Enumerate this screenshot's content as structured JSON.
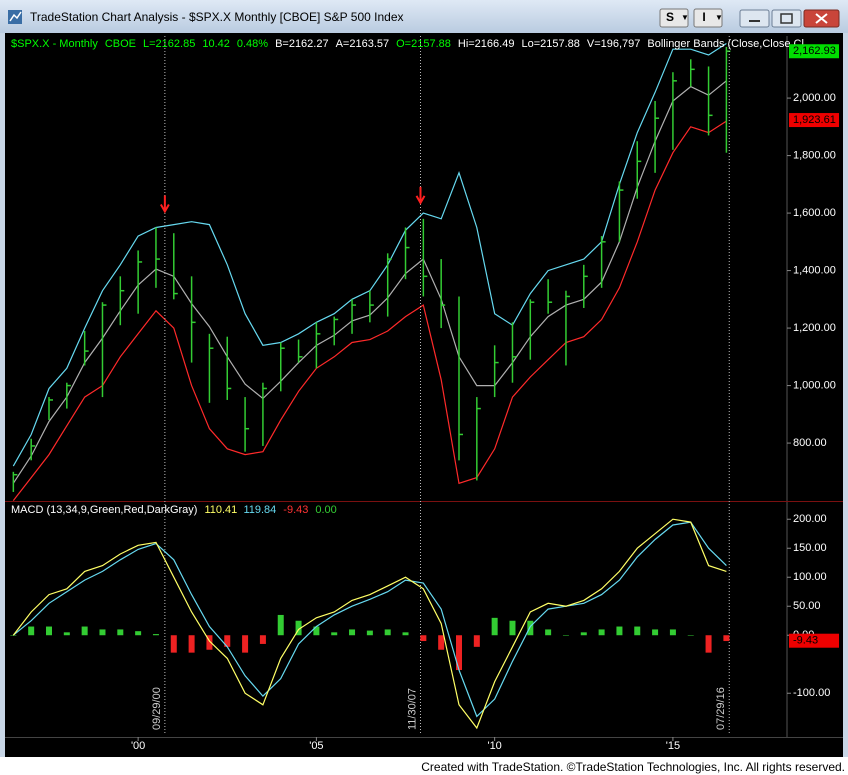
{
  "window_title": "TradeStation Chart Analysis - $SPX.X Monthly [CBOE] S&P 500 Index",
  "toolbar_buttons": [
    "S",
    "I"
  ],
  "footer": "Created with TradeStation. ©TradeStation Technologies, Inc. All rights reserved.",
  "chart_data": [
    {
      "type": "ohlc",
      "header": [
        {
          "text": "$SPX.X - Monthly",
          "color": "#00ff00"
        },
        {
          "text": "CBOE",
          "color": "#00ff00"
        },
        {
          "text": "L=2162.85",
          "color": "#00ff00"
        },
        {
          "text": "10.42",
          "color": "#00ff00"
        },
        {
          "text": "0.48%",
          "color": "#00ff00"
        },
        {
          "text": "B=2162.27",
          "color": "#ffffff"
        },
        {
          "text": "A=2163.57",
          "color": "#ffffff"
        },
        {
          "text": "O=2157.88",
          "color": "#00ff00"
        },
        {
          "text": "Hi=2166.49",
          "color": "#ffffff"
        },
        {
          "text": "Lo=2157.88",
          "color": "#ffffff"
        },
        {
          "text": "V=196,797",
          "color": "#ffffff"
        },
        {
          "text": "Bollinger Bands (Close,Close,Cl...",
          "color": "#ffffff"
        }
      ],
      "x": [
        1996.5,
        1997.0,
        1997.5,
        1998.0,
        1998.5,
        1999.0,
        1999.5,
        2000.0,
        2000.5,
        2001.0,
        2001.5,
        2002.0,
        2002.5,
        2003.0,
        2003.5,
        2004.0,
        2004.5,
        2005.0,
        2005.5,
        2006.0,
        2006.5,
        2007.0,
        2007.5,
        2008.0,
        2008.5,
        2009.0,
        2009.5,
        2010.0,
        2010.5,
        2011.0,
        2011.5,
        2012.0,
        2012.5,
        2013.0,
        2013.5,
        2014.0,
        2014.5,
        2015.0,
        2015.5,
        2016.0,
        2016.5
      ],
      "high": [
        700,
        815,
        960,
        1010,
        1190,
        1290,
        1380,
        1470,
        1550,
        1530,
        1380,
        1180,
        1170,
        960,
        1010,
        1150,
        1160,
        1220,
        1240,
        1300,
        1330,
        1460,
        1550,
        1580,
        1440,
        1310,
        960,
        1140,
        1220,
        1300,
        1370,
        1330,
        1420,
        1520,
        1710,
        1850,
        1990,
        2090,
        2135,
        2110,
        2178
      ],
      "low": [
        630,
        740,
        880,
        920,
        1070,
        960,
        1210,
        1250,
        1340,
        1300,
        1080,
        940,
        950,
        770,
        790,
        980,
        1080,
        1060,
        1140,
        1180,
        1220,
        1240,
        1370,
        1310,
        1200,
        740,
        670,
        960,
        1010,
        1090,
        1250,
        1070,
        1270,
        1340,
        1500,
        1650,
        1740,
        1820,
        2040,
        1870,
        1810
      ],
      "close": [
        690,
        790,
        950,
        1000,
        1120,
        1280,
        1330,
        1430,
        1440,
        1320,
        1220,
        1130,
        990,
        850,
        990,
        1130,
        1100,
        1180,
        1230,
        1280,
        1280,
        1440,
        1480,
        1380,
        1280,
        830,
        920,
        1080,
        1100,
        1290,
        1290,
        1310,
        1380,
        1500,
        1680,
        1780,
        1930,
        2060,
        2100,
        1940,
        2163
      ],
      "bar_color": "#33cc33",
      "upper": [
        720,
        830,
        990,
        1060,
        1200,
        1330,
        1420,
        1520,
        1550,
        1560,
        1570,
        1560,
        1420,
        1250,
        1140,
        1150,
        1180,
        1220,
        1250,
        1300,
        1330,
        1420,
        1540,
        1600,
        1580,
        1740,
        1550,
        1250,
        1210,
        1320,
        1400,
        1420,
        1440,
        1500,
        1700,
        1880,
        2020,
        2170,
        2170,
        2150,
        2190
      ],
      "mid": [
        660,
        755,
        875,
        960,
        1080,
        1165,
        1260,
        1350,
        1405,
        1380,
        1285,
        1205,
        1100,
        1005,
        955,
        1015,
        1080,
        1140,
        1175,
        1225,
        1245,
        1305,
        1390,
        1440,
        1300,
        1100,
        1000,
        1000,
        1080,
        1170,
        1240,
        1280,
        1300,
        1360,
        1500,
        1690,
        1850,
        1990,
        2040,
        2010,
        2060
      ],
      "lower": [
        600,
        680,
        760,
        860,
        960,
        1000,
        1100,
        1180,
        1260,
        1200,
        1000,
        850,
        780,
        760,
        770,
        880,
        980,
        1060,
        1100,
        1150,
        1160,
        1190,
        1240,
        1280,
        1020,
        660,
        680,
        780,
        960,
        1030,
        1090,
        1150,
        1170,
        1230,
        1340,
        1500,
        1680,
        1810,
        1900,
        1880,
        1920
      ],
      "upper_color": "#66d9f0",
      "mid_color": "#b0b0b0",
      "lower_color": "#ff2a2a",
      "xlim": [
        1996.35,
        2018.2
      ],
      "ylim": [
        602,
        2209
      ],
      "yticks": [
        {
          "value": 800,
          "label": "800.00"
        },
        {
          "value": 1000,
          "label": "1,000.00"
        },
        {
          "value": 1200,
          "label": "1,200.00"
        },
        {
          "value": 1400,
          "label": "1,400.00"
        },
        {
          "value": 1600,
          "label": "1,600.00"
        },
        {
          "value": 1800,
          "label": "1,800.00"
        },
        {
          "value": 2000,
          "label": "2,000.00"
        }
      ],
      "last_labels": [
        {
          "value": 2162.93,
          "label": "2,162.93",
          "color": "#00dd00"
        },
        {
          "value": 1923.61,
          "label": "1,923.61",
          "color": "#ee0000"
        }
      ],
      "markers": [
        {
          "x": 2000.75,
          "label": "09/29/00",
          "arrow": true
        },
        {
          "x": 2007.92,
          "label": "11/30/07",
          "arrow": true
        },
        {
          "x": 2016.58,
          "label": "07/29/16",
          "arrow": false
        }
      ],
      "arrow_color": "#ff2020"
    },
    {
      "type": "macd",
      "header": [
        {
          "text": "MACD (13,34,9,Green,Red,DarkGray)",
          "color": "#ffffff"
        },
        {
          "text": "110.41",
          "color": "#ffff66"
        },
        {
          "text": "119.84",
          "color": "#66d9f0"
        },
        {
          "text": "-9.43",
          "color": "#ff3333"
        },
        {
          "text": "0.00",
          "color": "#33cc33"
        }
      ],
      "x": [
        1996.5,
        1997.0,
        1997.5,
        1998.0,
        1998.5,
        1999.0,
        1999.5,
        2000.0,
        2000.5,
        2001.0,
        2001.5,
        2002.0,
        2002.5,
        2003.0,
        2003.5,
        2004.0,
        2004.5,
        2005.0,
        2005.5,
        2006.0,
        2006.5,
        2007.0,
        2007.5,
        2008.0,
        2008.5,
        2009.0,
        2009.5,
        2010.0,
        2010.5,
        2011.0,
        2011.5,
        2012.0,
        2012.5,
        2013.0,
        2013.5,
        2014.0,
        2014.5,
        2015.0,
        2015.5,
        2016.0,
        2016.5
      ],
      "macd": [
        0,
        40,
        70,
        80,
        110,
        120,
        140,
        155,
        160,
        100,
        40,
        -10,
        -40,
        -100,
        -120,
        -40,
        10,
        30,
        40,
        60,
        70,
        85,
        100,
        80,
        20,
        -120,
        -160,
        -80,
        -20,
        40,
        55,
        50,
        60,
        80,
        110,
        150,
        175,
        200,
        195,
        120,
        110
      ],
      "signal": [
        0,
        25,
        55,
        75,
        95,
        110,
        130,
        148,
        158,
        130,
        70,
        15,
        -20,
        -70,
        -105,
        -75,
        -15,
        15,
        35,
        50,
        62,
        75,
        95,
        90,
        45,
        -60,
        -140,
        -110,
        -45,
        15,
        45,
        50,
        55,
        70,
        95,
        135,
        165,
        190,
        195,
        150,
        120
      ],
      "hist": [
        0,
        15,
        15,
        5,
        15,
        10,
        10,
        7,
        2,
        -30,
        -30,
        -25,
        -20,
        -30,
        -15,
        35,
        25,
        15,
        5,
        10,
        8,
        10,
        5,
        -10,
        -25,
        -60,
        -20,
        30,
        25,
        25,
        10,
        0,
        5,
        10,
        15,
        15,
        10,
        10,
        0,
        -30,
        -10
      ],
      "macd_color": "#ffff66",
      "signal_color": "#66d9f0",
      "pos_color": "#33cc33",
      "neg_color": "#ee2222",
      "xlim": [
        1996.35,
        2018.2
      ],
      "ylim": [
        -172,
        228
      ],
      "yticks": [
        {
          "value": -100,
          "label": "-100.00"
        },
        {
          "value": 0,
          "label": "0.00"
        },
        {
          "value": 50,
          "label": "50.00"
        },
        {
          "value": 100,
          "label": "100.00"
        },
        {
          "value": 150,
          "label": "150.00"
        },
        {
          "value": 200,
          "label": "200.00"
        }
      ],
      "xticks": [
        {
          "value": 2000,
          "label": "'00"
        },
        {
          "value": 2005,
          "label": "'05"
        },
        {
          "value": 2010,
          "label": "'10"
        },
        {
          "value": 2015,
          "label": "'15"
        }
      ],
      "last_labels": [
        {
          "value": -9.43,
          "label": "-9.43",
          "color": "#ee0000"
        }
      ]
    }
  ]
}
